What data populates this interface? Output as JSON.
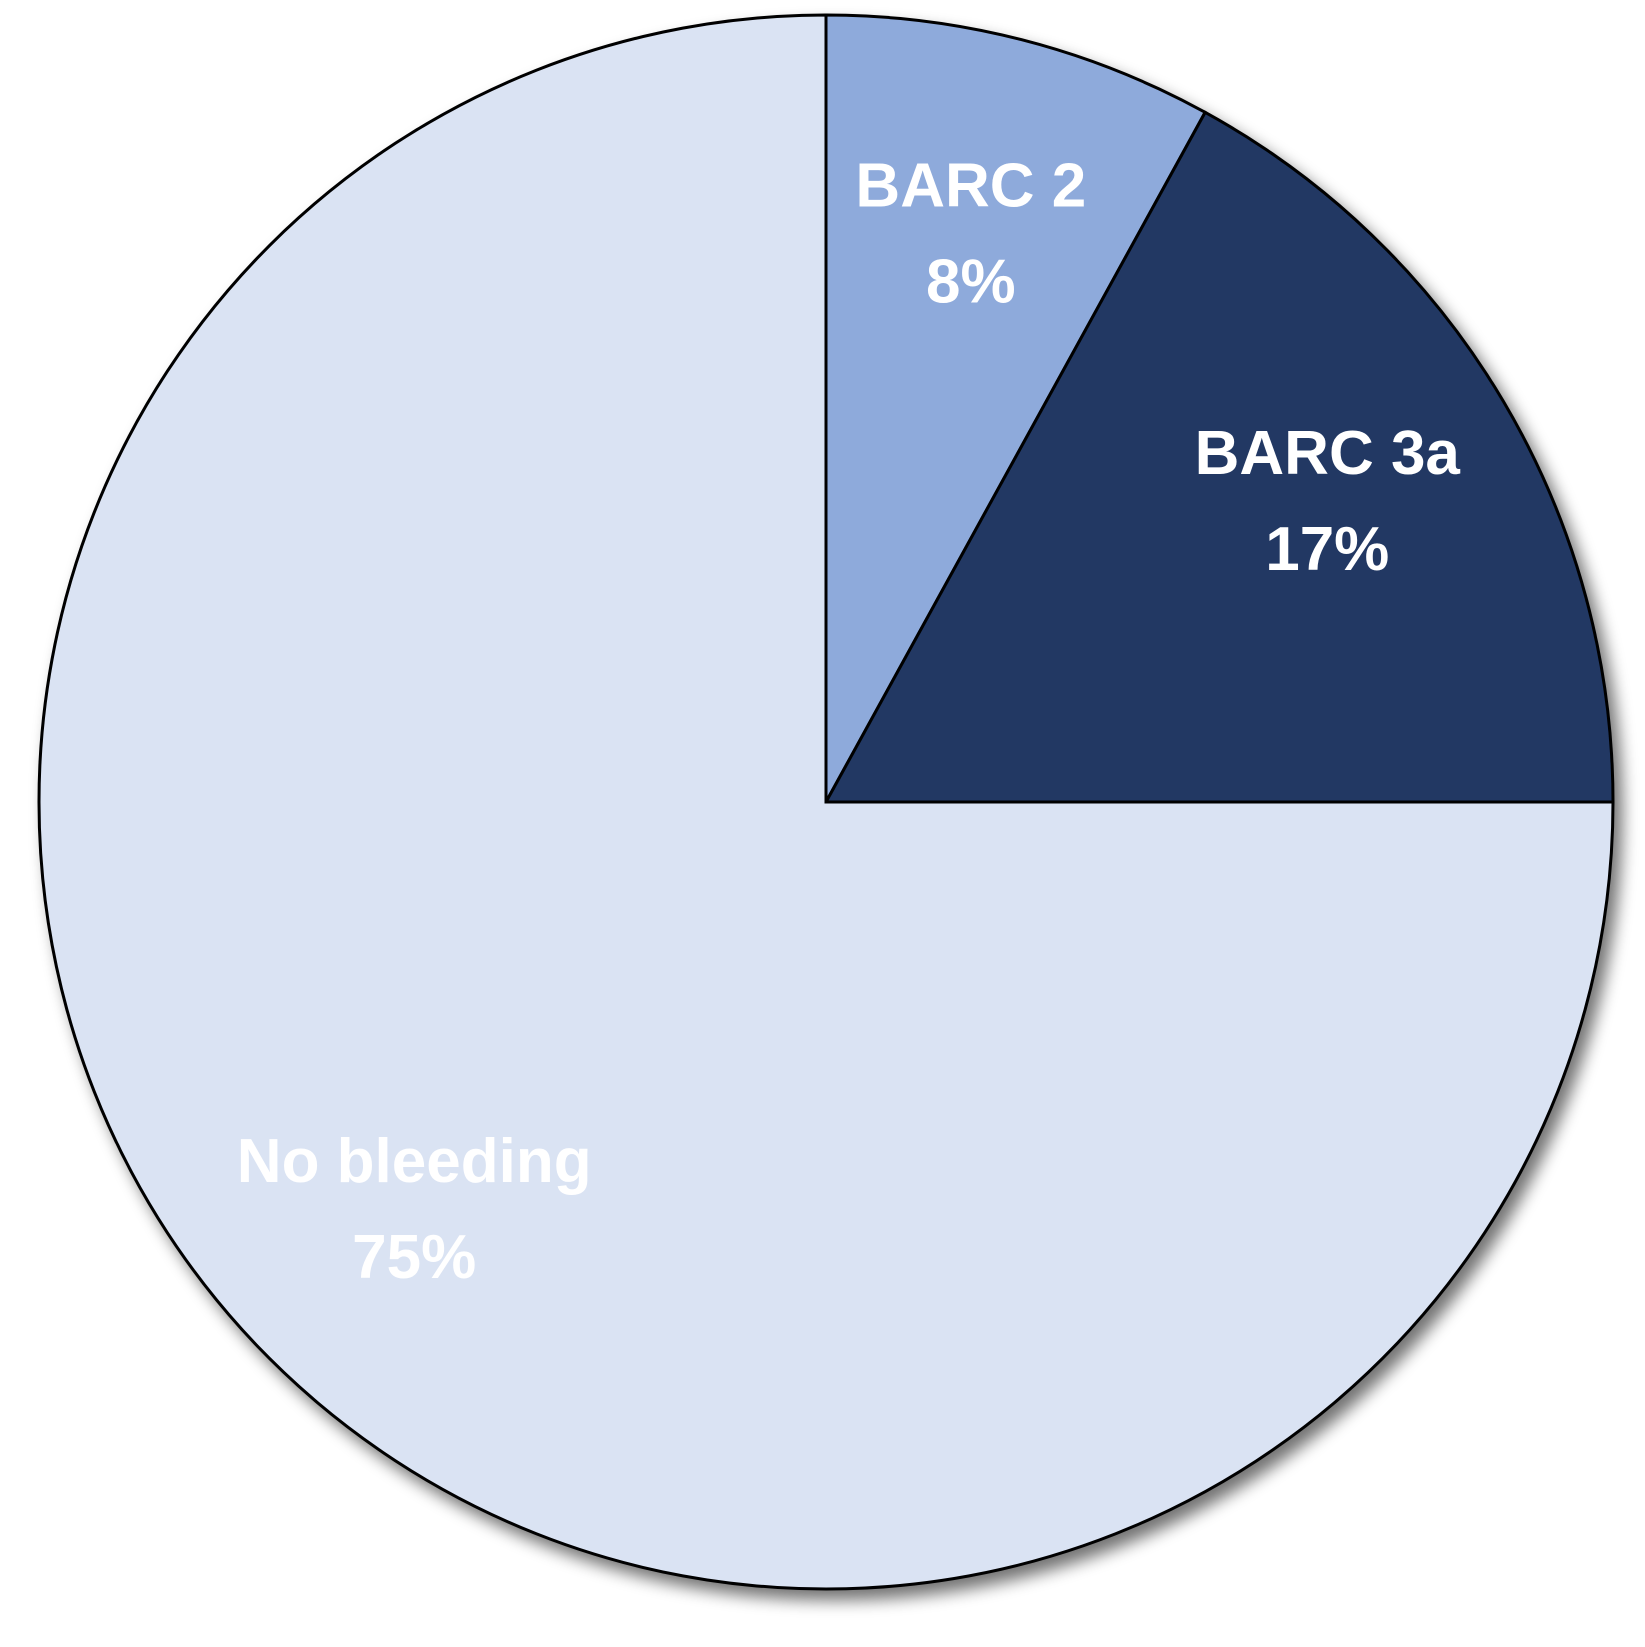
{
  "chart_data": {
    "type": "pie",
    "categories": [
      "BARC 2",
      "BARC 3a",
      "No bleeding"
    ],
    "values": [
      8,
      17,
      75
    ],
    "value_labels": [
      "8%",
      "17%",
      "75%"
    ],
    "colors": [
      "#8eaadb",
      "#203864",
      "#dae3f3"
    ]
  }
}
